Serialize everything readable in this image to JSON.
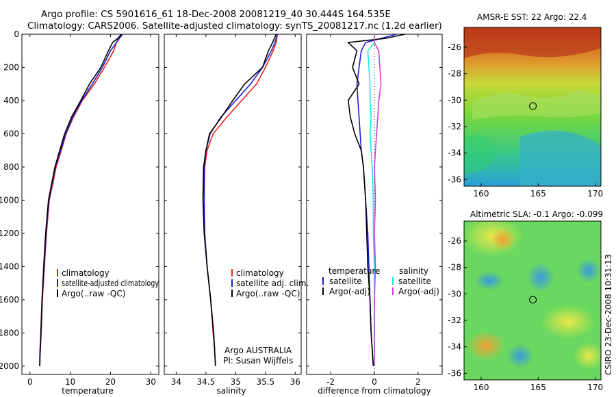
{
  "figure": {
    "title_line1": "Argo profile: CS 5901616_61 18-Dec-2008 20081219_40 30.444S 164.535E",
    "title_line2": "Climatology: CARS2006. Satellite-adjusted climatology: synTS_20081217.nc (1.2d earlier)",
    "credit_line1": "Argo AUSTRALIA",
    "credit_line2": "PI: Susan Wijffels",
    "timestamp": "CSIRO 23-Dec-2008 10:31:13"
  },
  "colors": {
    "climatology": "#e8251b",
    "satellite": "#1a1ad8",
    "argo": "#000000",
    "salinity_satellite": "#19e8e8",
    "salinity_argo": "#d83ad8"
  },
  "legends": {
    "temperature": [
      "climatology",
      "satellite-adjusted climatology",
      "Argo(..raw -QC)"
    ],
    "salinity": [
      "climatology",
      "satellite adj. clim.",
      "Argo(..raw -QC)"
    ],
    "difference_left_header": "temperature",
    "difference_left": [
      "satellite",
      "Argo(-adj)"
    ],
    "difference_right_header": "salinity",
    "difference_right": [
      "satellite",
      "Argo(-adj)"
    ]
  },
  "maps": [
    {
      "title": "AMSR-E SST: 22 Argo: 22.4",
      "xticks": [
        "160",
        "165",
        "170"
      ],
      "yticks": [
        "-26",
        "-28",
        "-30",
        "-32",
        "-34",
        "-36"
      ],
      "marker": {
        "lon": 164.535,
        "lat": -30.444
      },
      "xlim": [
        158.5,
        170.5
      ],
      "ylim": [
        -36.5,
        -24.5
      ]
    },
    {
      "title": "Altimetric SLA: -0.1 Argo: -0.099",
      "xticks": [
        "160",
        "165",
        "170"
      ],
      "yticks": [
        "-26",
        "-28",
        "-30",
        "-32",
        "-34",
        "-36"
      ],
      "marker": {
        "lon": 164.535,
        "lat": -30.444
      },
      "xlim": [
        158.5,
        170.5
      ],
      "ylim": [
        -36.5,
        -24.5
      ]
    }
  ],
  "chart_data": [
    {
      "type": "line",
      "xlabel": "temperature",
      "ylabel": "",
      "xlim": [
        -2,
        32
      ],
      "ylim": [
        2050,
        0
      ],
      "xticks": [
        "0",
        "10",
        "20",
        "30"
      ],
      "yticks": [
        "0",
        "200",
        "400",
        "600",
        "800",
        "1000",
        "1200",
        "1400",
        "1600",
        "1800",
        "2000"
      ],
      "series": [
        {
          "name": "climatology",
          "x": [
            22.6,
            21.9,
            21.5,
            20.8,
            18.5,
            16.0,
            13.0,
            10.8,
            9.0,
            7.8,
            6.5,
            5.7,
            4.8,
            4.1,
            3.6,
            3.1,
            2.8,
            2.6,
            2.45
          ],
          "y": [
            0,
            25,
            50,
            100,
            200,
            300,
            400,
            500,
            600,
            700,
            800,
            900,
            1000,
            1200,
            1400,
            1600,
            1800,
            1900,
            1950
          ]
        },
        {
          "name": "satellite-adjusted climatology",
          "x": [
            23.0,
            22.2,
            21.5,
            20.0,
            18.0,
            15.5,
            12.8,
            10.6,
            8.9,
            7.6,
            6.3,
            5.5,
            4.7,
            4.0,
            3.5,
            3.0,
            2.75,
            2.55,
            2.45
          ],
          "y": [
            0,
            25,
            50,
            100,
            200,
            300,
            400,
            500,
            600,
            700,
            800,
            900,
            1000,
            1200,
            1400,
            1600,
            1800,
            1900,
            2000
          ]
        },
        {
          "name": "Argo(..raw -QC)",
          "x": [
            22.8,
            21.8,
            20.5,
            19.5,
            17.6,
            14.8,
            12.6,
            10.3,
            8.6,
            7.4,
            6.2,
            5.4,
            4.6,
            3.9,
            3.4,
            3.0,
            2.7,
            2.5,
            2.4
          ],
          "y": [
            0,
            25,
            50,
            100,
            200,
            300,
            400,
            500,
            600,
            700,
            800,
            900,
            1000,
            1200,
            1400,
            1600,
            1800,
            1900,
            2000
          ]
        }
      ]
    },
    {
      "type": "line",
      "xlabel": "salinity",
      "ylabel": "",
      "xlim": [
        33.8,
        36.1
      ],
      "ylim": [
        2050,
        0
      ],
      "xticks": [
        "34",
        "34.5",
        "35",
        "35.5",
        "36"
      ],
      "yticks": [],
      "series": [
        {
          "name": "climatology",
          "x": [
            35.7,
            35.68,
            35.63,
            35.5,
            35.35,
            35.1,
            34.85,
            34.62,
            34.52,
            34.48,
            34.47,
            34.48,
            34.52,
            34.58,
            34.62,
            34.65
          ],
          "y": [
            0,
            50,
            100,
            200,
            300,
            400,
            500,
            600,
            700,
            800,
            1000,
            1200,
            1400,
            1600,
            1800,
            1900
          ]
        },
        {
          "name": "satellite adj. clim.",
          "x": [
            35.7,
            35.66,
            35.6,
            35.45,
            35.25,
            35.0,
            34.75,
            34.57,
            34.5,
            34.47,
            34.47,
            34.48,
            34.52,
            34.58,
            34.63,
            34.66
          ],
          "y": [
            0,
            50,
            100,
            200,
            300,
            400,
            500,
            600,
            700,
            800,
            1000,
            1200,
            1400,
            1600,
            1800,
            2000
          ]
        },
        {
          "name": "Argo(..raw -QC)",
          "x": [
            35.68,
            35.62,
            35.55,
            35.45,
            35.15,
            34.95,
            34.76,
            34.56,
            34.5,
            34.46,
            34.45,
            34.47,
            34.52,
            34.58,
            34.63,
            34.66
          ],
          "y": [
            0,
            50,
            100,
            200,
            300,
            400,
            500,
            600,
            700,
            800,
            1000,
            1200,
            1400,
            1600,
            1800,
            2000
          ]
        }
      ]
    },
    {
      "type": "line",
      "xlabel": "difference from climatology",
      "ylabel": "",
      "xlim": [
        -3.1,
        3.1
      ],
      "ylim": [
        2050,
        0
      ],
      "xticks": [
        "-2",
        "0",
        "2"
      ],
      "yticks": [],
      "series": [
        {
          "name": "temperature satellite",
          "x": [
            1.0,
            0.3,
            -0.4,
            -0.6,
            -0.7,
            -0.8,
            -0.75,
            -0.7,
            -0.65,
            -0.6,
            -0.5,
            -0.45,
            -0.4,
            -0.3,
            -0.25,
            -0.2,
            -0.15,
            -0.1,
            -0.05
          ],
          "y": [
            0,
            25,
            50,
            100,
            200,
            300,
            400,
            500,
            600,
            700,
            800,
            900,
            1000,
            1200,
            1400,
            1600,
            1800,
            1900,
            2000
          ]
        },
        {
          "name": "temperature Argo(-adj)",
          "x": [
            1.4,
            0.5,
            -1.2,
            -0.8,
            -1.0,
            -0.7,
            -1.2,
            -1.1,
            -0.9,
            -0.6,
            -0.5,
            -0.45,
            -0.4,
            -0.35,
            -0.3,
            -0.2,
            -0.15,
            -0.1,
            -0.05
          ],
          "y": [
            0,
            25,
            50,
            100,
            200,
            300,
            400,
            500,
            600,
            700,
            800,
            900,
            1000,
            1200,
            1400,
            1600,
            1800,
            1900,
            2000
          ]
        },
        {
          "name": "salinity satellite",
          "x": [
            0.0,
            0.0,
            -0.3,
            -0.25,
            -0.2,
            -0.2,
            -0.15,
            -0.2,
            -0.15,
            -0.1,
            -0.05,
            -0.05,
            0.0,
            0.0,
            0.0,
            0.0
          ],
          "y": [
            0,
            50,
            100,
            200,
            300,
            400,
            500,
            600,
            700,
            800,
            1000,
            1200,
            1400,
            1600,
            1800,
            2000
          ]
        },
        {
          "name": "salinity Argo(-adj)",
          "x": [
            0.0,
            0.0,
            0.2,
            0.25,
            0.3,
            0.2,
            0.15,
            0.1,
            0.05,
            0.0,
            0.05,
            0.0,
            0.05,
            0.0,
            0.0,
            0.0
          ],
          "y": [
            0,
            50,
            100,
            200,
            300,
            400,
            500,
            600,
            700,
            800,
            1000,
            1200,
            1400,
            1600,
            1800,
            2000
          ]
        }
      ]
    }
  ]
}
